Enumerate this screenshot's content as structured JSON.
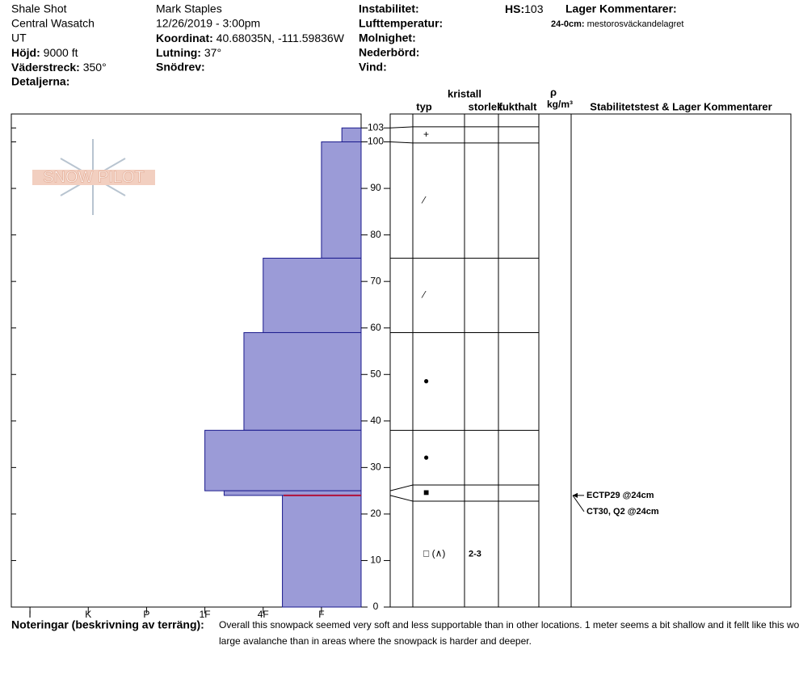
{
  "header": {
    "site": "Shale Shot",
    "range": "Central Wasatch",
    "state": "UT",
    "observer": "Mark Staples",
    "datetime": "12/26/2019 - 3:00pm",
    "fields": [
      {
        "label": "Höjd:",
        "value": "9000 ft"
      },
      {
        "label": "Väderstreck:",
        "value": "350°"
      },
      {
        "label": "Detaljerna:"
      },
      {
        "label": "Koordinat:",
        "value": "40.68035N, -111.59836W"
      },
      {
        "label": "Lutning:",
        "value": "37°"
      },
      {
        "label": "Snödrev:"
      },
      {
        "label": "Instabilitet:"
      },
      {
        "label": "Lufttemperatur:"
      },
      {
        "label": "Molnighet:"
      },
      {
        "label": "Nederbörd:"
      },
      {
        "label": "Vind:"
      },
      {
        "label": "HS:",
        "value": "103"
      },
      {
        "label": "Lager Kommentarer:"
      }
    ],
    "layer_comment": {
      "label": "24-0cm:",
      "value": "mestorosväckandelagret"
    }
  },
  "logo": "SNOW PILOT",
  "chart_data": {
    "type": "profile",
    "xlim": [
      6.32,
      0.32
    ],
    "xticks": [
      {
        "value": 6,
        "label": "I"
      },
      {
        "value": 5,
        "label": "K"
      },
      {
        "value": 4,
        "label": "P"
      },
      {
        "value": 3,
        "label": "1F"
      },
      {
        "value": 2,
        "label": "4F"
      },
      {
        "value": 1,
        "label": "F"
      }
    ],
    "ylim": [
      0,
      106
    ],
    "yticks": [
      0,
      10,
      20,
      30,
      40,
      50,
      60,
      70,
      80,
      90,
      100,
      103
    ],
    "color": "#9b9bd7",
    "layers": {
      "top": [
        103,
        100,
        75,
        59,
        38,
        25,
        24
      ],
      "bottom": [
        100,
        75,
        59,
        38,
        25,
        24,
        0
      ],
      "hardness": [
        0.65,
        1,
        2,
        2.33,
        3,
        2.67,
        1.67
      ],
      "grain": [
        "+",
        "⁄",
        "⁄",
        "●",
        "●",
        "■",
        "□ (∧)"
      ],
      "size": [
        null,
        null,
        null,
        null,
        null,
        null,
        "2-3"
      ]
    },
    "columns": {
      "type_top": "kristall",
      "type": "typ",
      "size": "storlek",
      "moisture": "fukthalt",
      "density_symbol": "ρ",
      "density_unit": "kg/m³",
      "tests": "Stabilitetstest & Lager Kommentarer"
    },
    "tests": [
      {
        "label": "ECTP29 @24cm",
        "depth": 24
      },
      {
        "label": "CT30, Q2 @24cm",
        "depth": 24
      }
    ]
  },
  "notes": {
    "label": "Noteringar (beskrivning av terräng):",
    "lines": [
      "Overall this snowpack seemed very soft and less supportable than in other locations. 1 meter seems a bit shallow and it fellt like this wo",
      "large avalanche than in areas where the snowpack is harder and deeper."
    ]
  }
}
